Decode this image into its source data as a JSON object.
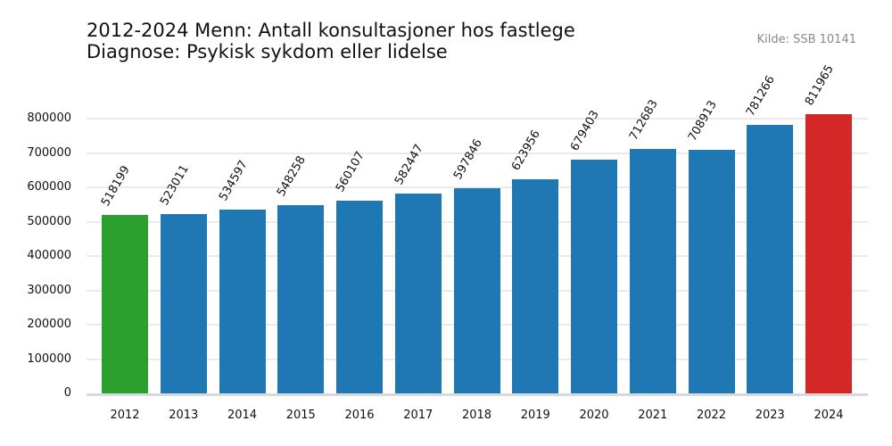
{
  "header": {
    "title": "2012-2024 Menn: Antall konsultasjoner hos fastlege\nDiagnose: Psykisk sykdom eller lidelse",
    "source": "Kilde: SSB 10141"
  },
  "colors": {
    "default": "#1f77b4",
    "first": "#2ca02c",
    "last": "#d62728",
    "grid": "#ebebeb"
  },
  "chart_data": {
    "type": "bar",
    "title": "2012-2024 Menn: Antall konsultasjoner hos fastlege — Diagnose: Psykisk sykdom eller lidelse",
    "xlabel": "",
    "ylabel": "",
    "categories": [
      "2012",
      "2013",
      "2014",
      "2015",
      "2016",
      "2017",
      "2018",
      "2019",
      "2020",
      "2021",
      "2022",
      "2023",
      "2024"
    ],
    "values": [
      518199,
      523011,
      534597,
      548258,
      560107,
      582447,
      597846,
      623956,
      679403,
      712683,
      708913,
      781266,
      811965
    ],
    "ylim": [
      0,
      800000
    ],
    "yticks": [
      0,
      100000,
      200000,
      300000,
      400000,
      500000,
      600000,
      700000,
      800000
    ],
    "grid": "horizontal",
    "legend": "none",
    "annotations": "value labels rotated 60° above each bar"
  }
}
